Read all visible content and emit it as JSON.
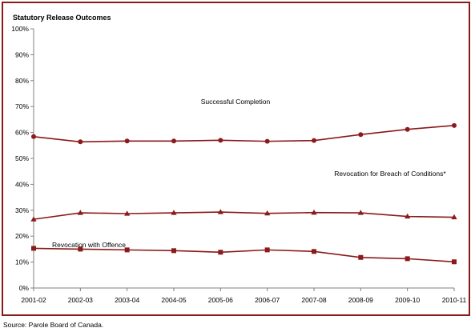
{
  "chart_data": {
    "type": "line",
    "title": "Statutory Release Outcomes",
    "categories": [
      "2001-02",
      "2002-03",
      "2003-04",
      "2004-05",
      "2005-06",
      "2006-07",
      "2007-08",
      "2008-09",
      "2009-10",
      "2010-11"
    ],
    "ylim": [
      0,
      100
    ],
    "yticks": [
      0,
      10,
      20,
      30,
      40,
      50,
      60,
      70,
      80,
      90,
      100
    ],
    "ytick_labels": [
      "0%",
      "10%",
      "20%",
      "30%",
      "40%",
      "50%",
      "60%",
      "70%",
      "80%",
      "90%",
      "100%"
    ],
    "grid": false,
    "series": [
      {
        "name": "Successful Completion",
        "marker": "circle",
        "color": "#8b1a1a",
        "values": [
          58.4,
          56.4,
          56.7,
          56.7,
          57.0,
          56.6,
          56.9,
          59.2,
          61.2,
          62.7
        ]
      },
      {
        "name": "Revocation for Breach of Conditions*",
        "marker": "triangle",
        "color": "#8b1a1a",
        "values": [
          26.5,
          29.0,
          28.7,
          29.0,
          29.3,
          28.8,
          29.1,
          29.0,
          27.6,
          27.3
        ]
      },
      {
        "name": "Revocation with Offence",
        "marker": "square",
        "color": "#8b1a1a",
        "values": [
          15.3,
          15.0,
          14.7,
          14.4,
          13.8,
          14.7,
          14.1,
          11.8,
          11.3,
          10.1
        ]
      }
    ]
  },
  "source": "Source:  Parole Board of Canada."
}
